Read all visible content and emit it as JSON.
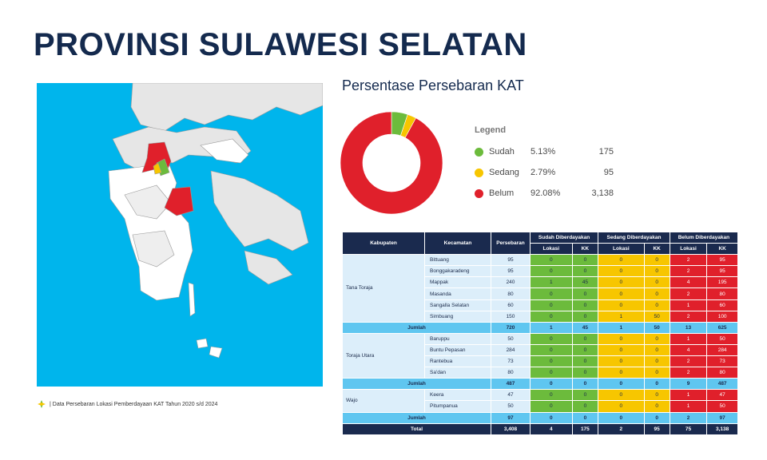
{
  "title": "PROVINSI SULAWESI SELATAN",
  "chart_title": "Persentase Persebaran KAT",
  "source": "| Data Persebaran Lokasi Pemberdayaan KAT Tahun 2020 s/d 2024",
  "legend": {
    "title": "Legend",
    "items": [
      {
        "name": "Sudah",
        "pct": "5.13%",
        "value": "175",
        "color": "#6cbb3c"
      },
      {
        "name": "Sedang",
        "pct": "2.79%",
        "value": "95",
        "color": "#f7c600"
      },
      {
        "name": "Belum",
        "pct": "92.08%",
        "value": "3,138",
        "color": "#e0202b"
      }
    ]
  },
  "chart_data": {
    "type": "pie",
    "categories": [
      "Sudah",
      "Sedang",
      "Belum"
    ],
    "values": [
      5.13,
      2.79,
      92.08
    ],
    "title": "Persentase Persebaran KAT",
    "colors": [
      "#6cbb3c",
      "#f7c600",
      "#e0202b"
    ]
  },
  "table": {
    "headers": {
      "kab": "Kabupaten",
      "kec": "Kecamatan",
      "per": "Persebaran",
      "sudah": "Sudah Diberdayakan",
      "sedang": "Sedang Diberdayakan",
      "belum": "Belum Diberdayakan",
      "lokasi": "Lokasi",
      "kk": "KK"
    },
    "groups": [
      {
        "kab": "Tana Toraja",
        "rows": [
          {
            "kec": "Bittuang",
            "per": "95",
            "v": [
              "0",
              "0",
              "0",
              "0",
              "2",
              "95"
            ]
          },
          {
            "kec": "Bonggakaradeng",
            "per": "95",
            "v": [
              "0",
              "0",
              "0",
              "0",
              "2",
              "95"
            ]
          },
          {
            "kec": "Mappak",
            "per": "240",
            "v": [
              "1",
              "45",
              "0",
              "0",
              "4",
              "195"
            ]
          },
          {
            "kec": "Masanda",
            "per": "80",
            "v": [
              "0",
              "0",
              "0",
              "0",
              "2",
              "80"
            ]
          },
          {
            "kec": "Sangalla Selatan",
            "per": "60",
            "v": [
              "0",
              "0",
              "0",
              "0",
              "1",
              "60"
            ]
          },
          {
            "kec": "Simbuang",
            "per": "150",
            "v": [
              "0",
              "0",
              "1",
              "50",
              "2",
              "100"
            ]
          }
        ],
        "jumlah": {
          "label": "Jumlah",
          "per": "720",
          "v": [
            "1",
            "45",
            "1",
            "50",
            "13",
            "625"
          ]
        }
      },
      {
        "kab": "Toraja Utara",
        "rows": [
          {
            "kec": "Baruppu",
            "per": "50",
            "v": [
              "0",
              "0",
              "0",
              "0",
              "1",
              "50"
            ]
          },
          {
            "kec": "Buntu Pepasan",
            "per": "284",
            "v": [
              "0",
              "0",
              "0",
              "0",
              "4",
              "284"
            ]
          },
          {
            "kec": "Rantebua",
            "per": "73",
            "v": [
              "0",
              "0",
              "0",
              "0",
              "2",
              "73"
            ]
          },
          {
            "kec": "Sa'dan",
            "per": "80",
            "v": [
              "0",
              "0",
              "0",
              "0",
              "2",
              "80"
            ]
          }
        ],
        "jumlah": {
          "label": "Jumlah",
          "per": "487",
          "v": [
            "0",
            "0",
            "0",
            "0",
            "9",
            "487"
          ]
        }
      },
      {
        "kab": "Wajo",
        "rows": [
          {
            "kec": "Keera",
            "per": "47",
            "v": [
              "0",
              "0",
              "0",
              "0",
              "1",
              "47"
            ]
          },
          {
            "kec": "Pitumpanua",
            "per": "50",
            "v": [
              "0",
              "0",
              "0",
              "0",
              "1",
              "50"
            ]
          }
        ],
        "jumlah": {
          "label": "Jumlah",
          "per": "97",
          "v": [
            "0",
            "0",
            "0",
            "0",
            "2",
            "97"
          ]
        }
      }
    ],
    "total": {
      "label": "Total",
      "per": "3,408",
      "v": [
        "4",
        "175",
        "2",
        "95",
        "75",
        "3,138"
      ]
    }
  }
}
